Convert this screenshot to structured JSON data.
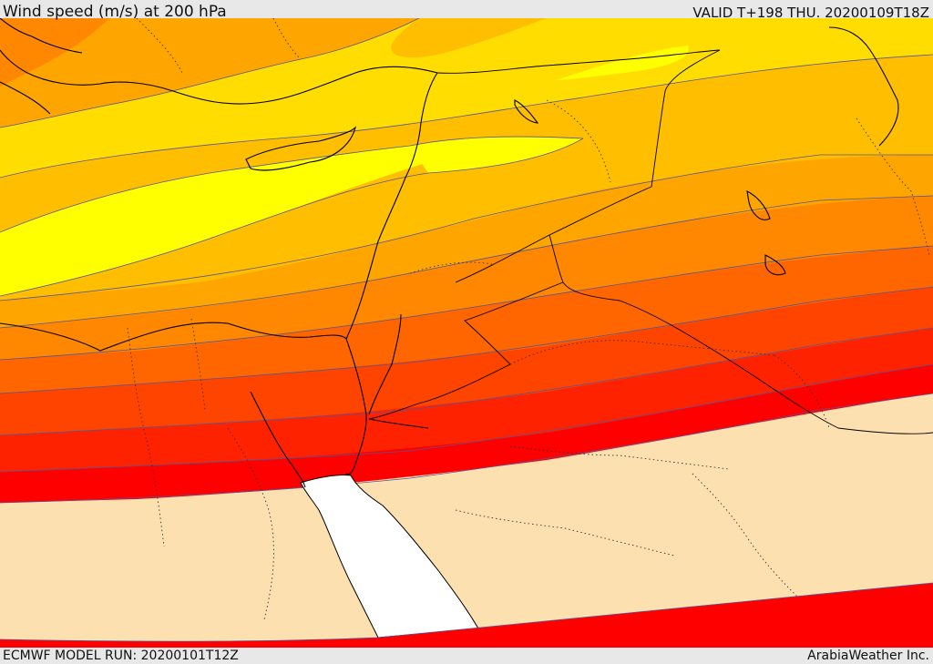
{
  "header": {
    "title": "Wind speed (m/s) at 200 hPa",
    "valid": "VALID T+198 THU. 20200109T18Z"
  },
  "footer": {
    "model_run": "ECMWF MODEL RUN: 20200101T12Z",
    "credit": "ArabiaWeather Inc."
  },
  "map": {
    "variable": "wind speed",
    "units": "m/s",
    "level_hpa": 200,
    "palette": {
      "background_low": "#fde0b0",
      "sea_unshaded": "#ffffff",
      "band_colors": [
        "#ff0000",
        "#ff2200",
        "#ff4400",
        "#ff6600",
        "#ff8800",
        "#ffa500",
        "#ffbf00",
        "#ffdd00",
        "#ffff00"
      ],
      "contour_line": "#555599",
      "coastline": "#000000",
      "border_dotted": "#333333"
    }
  }
}
